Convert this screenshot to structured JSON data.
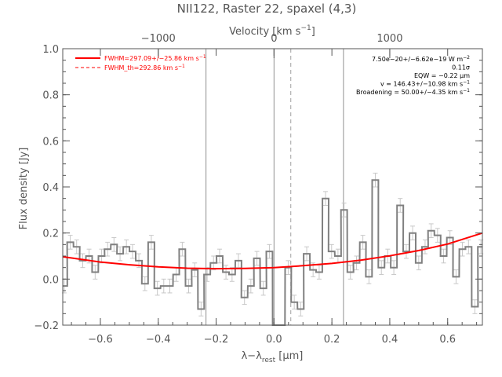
{
  "chart_data": {
    "type": "line",
    "title": "NII122, Raster 22, spaxel (4,3)",
    "xlabel_main": "λ−λ",
    "xlabel_sub": "rest",
    "xlabel_unit": " [μm]",
    "xlabel_top": "Velocity [km s",
    "xlabel_top_sup": "−1",
    "xlabel_top_end": "]",
    "ylabel": "Flux density [Jy]",
    "xlim": [
      -0.73,
      0.72
    ],
    "ylim": [
      -0.2,
      1.0
    ],
    "x_ticks": [
      -0.6,
      -0.4,
      -0.2,
      0.0,
      0.2,
      0.4,
      0.6
    ],
    "x_tick_labels": [
      "−0.6",
      "−0.4",
      "−0.2",
      "0.0",
      "0.2",
      "0.4",
      "0.6"
    ],
    "y_ticks": [
      -0.2,
      0.0,
      0.2,
      0.4,
      0.6,
      0.8,
      1.0
    ],
    "y_tick_labels": [
      "−0.2",
      "0.0",
      "0.2",
      "0.4",
      "0.6",
      "0.8",
      "1.0"
    ],
    "top_axis_ticks": [
      -1000,
      0,
      1000
    ],
    "top_axis_tick_labels": [
      "−1000",
      "0",
      "1000"
    ],
    "top_axis_tick_positions_um": [
      -0.4,
      0.0,
      0.4
    ],
    "vlines_solid": [
      -0.235,
      0.0,
      0.24
    ],
    "vline_dashed": 0.058,
    "legend": {
      "placement": "top-left",
      "entries": [
        {
          "label": "FWHM=297.09+/−25.86 km s",
          "sup": "−1",
          "style": "solid",
          "color": "#ff0000"
        },
        {
          "label": "FWHM_th=292.86 km s",
          "sup": "−1",
          "style": "dashed",
          "color": "#ff0000"
        }
      ]
    },
    "annotations": [
      {
        "text": "7.50e−20+/−6.62e−19 W m",
        "sup": "−2"
      },
      {
        "text": "0.11σ",
        "sup": ""
      },
      {
        "text": "EQW = −0.22 μm",
        "sup": ""
      },
      {
        "text": "v = 146.43+/−10.98 km s",
        "sup": "−1"
      },
      {
        "text": "Broadening = 50.00+/−4.35 km s",
        "sup": "−1"
      }
    ],
    "series": [
      {
        "name": "spectrum",
        "style": "step",
        "color": "#808080",
        "bin_width": 0.0215,
        "x": [
          -0.725,
          -0.704,
          -0.682,
          -0.661,
          -0.639,
          -0.618,
          -0.596,
          -0.575,
          -0.553,
          -0.532,
          -0.51,
          -0.489,
          -0.467,
          -0.446,
          -0.424,
          -0.403,
          -0.381,
          -0.36,
          -0.338,
          -0.317,
          -0.295,
          -0.274,
          -0.252,
          -0.231,
          -0.209,
          -0.188,
          -0.166,
          -0.145,
          -0.123,
          -0.102,
          -0.08,
          -0.059,
          -0.037,
          -0.016,
          0.006,
          0.027,
          0.049,
          0.07,
          0.092,
          0.113,
          0.135,
          0.156,
          0.178,
          0.199,
          0.221,
          0.242,
          0.264,
          0.285,
          0.307,
          0.328,
          0.35,
          0.371,
          0.393,
          0.414,
          0.436,
          0.457,
          0.479,
          0.5,
          0.522,
          0.543,
          0.565,
          0.586,
          0.608,
          0.629,
          0.651,
          0.672,
          0.694,
          0.715
        ],
        "y": [
          -0.03,
          0.16,
          0.14,
          0.08,
          0.1,
          0.03,
          0.1,
          0.13,
          0.15,
          0.11,
          0.14,
          0.12,
          0.08,
          -0.02,
          0.16,
          -0.04,
          -0.03,
          -0.03,
          0.02,
          0.13,
          -0.03,
          0.04,
          -0.13,
          0.02,
          0.07,
          0.1,
          0.03,
          0.02,
          0.08,
          -0.08,
          -0.03,
          0.09,
          -0.04,
          0.12,
          -0.24,
          -0.26,
          0.05,
          -0.1,
          -0.13,
          0.11,
          0.04,
          0.03,
          0.35,
          0.12,
          0.1,
          0.3,
          0.03,
          0.07,
          0.16,
          0.01,
          0.43,
          0.05,
          0.1,
          0.05,
          0.32,
          0.12,
          0.2,
          0.07,
          0.14,
          0.21,
          0.19,
          0.1,
          0.18,
          0.01,
          0.13,
          0.14,
          -0.12,
          0.14
        ],
        "err": [
          0.03,
          0.03,
          0.03,
          0.03,
          0.03,
          0.03,
          0.03,
          0.03,
          0.03,
          0.03,
          0.03,
          0.03,
          0.03,
          0.03,
          0.03,
          0.03,
          0.03,
          0.03,
          0.03,
          0.03,
          0.03,
          0.03,
          0.03,
          0.03,
          0.03,
          0.03,
          0.03,
          0.03,
          0.03,
          0.03,
          0.03,
          0.03,
          0.03,
          0.03,
          0.03,
          0.03,
          0.03,
          0.03,
          0.03,
          0.03,
          0.03,
          0.03,
          0.03,
          0.03,
          0.03,
          0.03,
          0.03,
          0.03,
          0.03,
          0.03,
          0.03,
          0.03,
          0.03,
          0.03,
          0.03,
          0.03,
          0.03,
          0.03,
          0.03,
          0.03,
          0.03,
          0.03,
          0.03,
          0.03,
          0.03,
          0.03,
          0.03,
          0.03
        ]
      },
      {
        "name": "fit",
        "style": "line",
        "color": "#ff0000",
        "x": [
          -0.73,
          -0.6,
          -0.5,
          -0.4,
          -0.3,
          -0.2,
          -0.1,
          0.0,
          0.1,
          0.2,
          0.3,
          0.4,
          0.5,
          0.6,
          0.72
        ],
        "y": [
          0.097,
          0.074,
          0.062,
          0.053,
          0.047,
          0.045,
          0.046,
          0.05,
          0.058,
          0.068,
          0.082,
          0.101,
          0.124,
          0.152,
          0.2
        ]
      }
    ]
  }
}
